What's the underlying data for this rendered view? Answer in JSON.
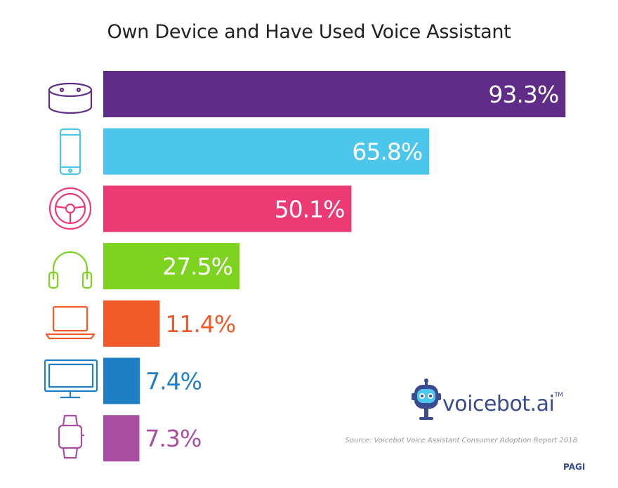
{
  "title": "Own Device and Have Used Voice Assistant",
  "chart_data": {
    "type": "bar",
    "orientation": "horizontal",
    "title": "Own Device and Have Used Voice Assistant",
    "categories": [
      "smart-speaker-icon",
      "smartphone-icon",
      "car-steering-wheel-icon",
      "headphones-icon",
      "laptop-icon",
      "tv-monitor-icon",
      "smartwatch-icon"
    ],
    "values": [
      93.3,
      65.8,
      50.1,
      27.5,
      11.4,
      7.4,
      7.3
    ],
    "labels": [
      "93.3%",
      "65.8%",
      "50.1%",
      "27.5%",
      "11.4%",
      "7.4%",
      "7.3%"
    ],
    "colors": [
      "#5f2d87",
      "#4cc6ea",
      "#ec3a74",
      "#7ed321",
      "#f15a29",
      "#1f7fc4",
      "#a84ea3"
    ],
    "label_inside": [
      true,
      true,
      true,
      true,
      false,
      false,
      false
    ],
    "xlim": [
      0,
      100
    ],
    "grid": false,
    "legend": "none"
  },
  "logo": {
    "text": "voicebot.ai",
    "tm": "TM"
  },
  "source": "Source: Voicebot Voice Assistant Consumer Adoption Report 2018",
  "page": "PAGI"
}
